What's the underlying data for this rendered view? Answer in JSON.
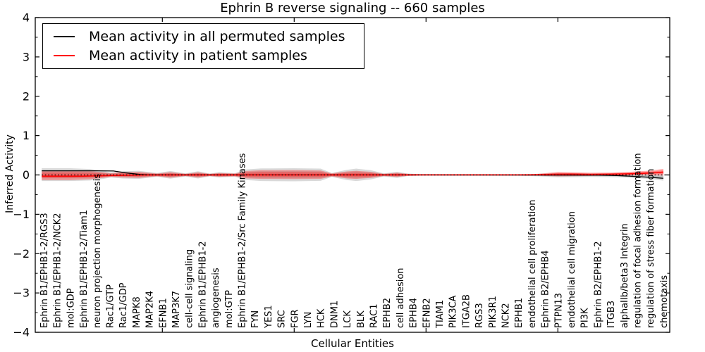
{
  "chart_data": {
    "type": "violin",
    "title": "Ephrin B reverse signaling -- 660 samples",
    "xlabel": "Cellular Entities",
    "ylabel": "Inferred Activity",
    "ylim": [
      -4,
      4
    ],
    "grid": false,
    "legend_position": "upper left",
    "ytick_labels": [
      "4",
      "3",
      "2",
      "1",
      "0",
      "−1",
      "−2",
      "−3",
      "−4"
    ],
    "x_top_tick_positions": [
      10,
      20,
      30,
      40
    ],
    "categories": [
      "Ephrin B1/EPHB1-2/RGS3",
      "Ephrin B1/EPHB1-2/NCK2",
      "mol:GDP",
      "Ephrin B1/EPHB1-2/Tiam1",
      "neuron projection morphogenesis",
      "Rac1/GTP",
      "Rac1/GDP",
      "MAPK8",
      "MAP2K4",
      "EFNB1",
      "MAP3K7",
      "cell-cell signaling",
      "Ephrin B1/EPHB1-2",
      "angiogenesis",
      "mol:GTP",
      "Ephrin B1/EPHB1-2/Src Family Kinases",
      "FYN",
      "YES1",
      "SRC",
      "FGR",
      "LYN",
      "HCK",
      "DNM1",
      "LCK",
      "BLK",
      "RAC1",
      "EPHB2",
      "cell adhesion",
      "EPHB4",
      "EFNB2",
      "TIAM1",
      "PIK3CA",
      "ITGA2B",
      "RGS3",
      "PIK3R1",
      "NCK2",
      "EPHB1",
      "endothelial cell proliferation",
      "Ephrin B2/EPHB4",
      "PTPN13",
      "endothelial cell migration",
      "PI3K",
      "Ephrin B2/EPHB1-2",
      "ITGB3",
      "alphaIIb/beta3 Integrin",
      "regulation of focal adhesion formation",
      "regulation of stress fiber formation",
      "chemotaxis"
    ],
    "legend": [
      {
        "label": "Mean activity in all permuted samples",
        "color": "#000000"
      },
      {
        "label": "Mean activity in patient samples",
        "color": "#ff0000"
      }
    ],
    "zero_line": {
      "style": "dotted",
      "color": "#000000",
      "y": 0
    },
    "series": [
      {
        "name": "Mean activity in all permuted samples",
        "color": "#000000",
        "style": "solid",
        "width": 1.3,
        "points": [
          [
            0.85,
            0.105
          ],
          [
            5,
            0.105
          ],
          [
            6.3,
            0.1
          ],
          [
            7.2,
            0.055
          ],
          [
            8.3,
            0.012
          ],
          [
            9,
            0.004
          ],
          [
            20,
            0.003
          ],
          [
            30,
            0.002
          ],
          [
            43,
            -0.004
          ],
          [
            44.5,
            -0.015
          ],
          [
            46,
            -0.04
          ],
          [
            47,
            -0.06
          ],
          [
            48,
            -0.085
          ]
        ]
      },
      {
        "name": "Mean activity in patient samples",
        "color": "#ff0000",
        "style": "solid",
        "width": 1.6,
        "points": [
          [
            0.85,
            -0.03
          ],
          [
            4,
            -0.03
          ],
          [
            5.5,
            -0.02
          ],
          [
            7,
            -0.01
          ],
          [
            9,
            0
          ],
          [
            38,
            0.003
          ],
          [
            39.5,
            0.015
          ],
          [
            41,
            0.02
          ],
          [
            42.5,
            0.012
          ],
          [
            44,
            0.02
          ],
          [
            45.5,
            0.03
          ],
          [
            46.5,
            0.042
          ],
          [
            47.5,
            0.058
          ],
          [
            48,
            0.072
          ]
        ]
      }
    ],
    "violins": [
      {
        "name": "permuted-distribution",
        "color": "#9a9a9a",
        "profile": [
          [
            0.85,
            0.17,
            -0.155
          ],
          [
            3,
            0.17,
            -0.155
          ],
          [
            4.5,
            0.15,
            -0.14
          ],
          [
            5.5,
            0.1,
            -0.1
          ],
          [
            6.1,
            0.065,
            -0.065
          ],
          [
            7.0,
            0.095,
            -0.09
          ],
          [
            8.2,
            0.105,
            -0.1
          ],
          [
            9.6,
            0.05,
            -0.045
          ],
          [
            10.6,
            0.1,
            -0.095
          ],
          [
            11.75,
            0.04,
            -0.04
          ],
          [
            12.7,
            0.095,
            -0.09
          ],
          [
            13.6,
            0.035,
            -0.035
          ],
          [
            14.3,
            0.07,
            -0.065
          ],
          [
            15.5,
            0.045,
            -0.045
          ],
          [
            16.4,
            0.14,
            -0.13
          ],
          [
            17.5,
            0.165,
            -0.155
          ],
          [
            20,
            0.17,
            -0.16
          ],
          [
            22,
            0.16,
            -0.15
          ],
          [
            22.85,
            0.05,
            -0.05
          ],
          [
            24,
            0.13,
            -0.13
          ],
          [
            24.7,
            0.16,
            -0.155
          ],
          [
            25.8,
            0.12,
            -0.115
          ],
          [
            26.8,
            0.04,
            -0.04
          ],
          [
            27.8,
            0.08,
            -0.075
          ],
          [
            28.6,
            0.035,
            -0.03
          ],
          [
            29.5,
            0.022,
            -0.022
          ],
          [
            33,
            0.02,
            -0.02
          ],
          [
            37,
            0.02,
            -0.02
          ],
          [
            38.5,
            0.028,
            -0.035
          ],
          [
            40,
            0.045,
            -0.06
          ],
          [
            41.5,
            0.04,
            -0.055
          ],
          [
            42.5,
            0.035,
            -0.05
          ],
          [
            44,
            0.03,
            -0.055
          ],
          [
            45.5,
            0.025,
            -0.07
          ],
          [
            47,
            0.015,
            -0.1
          ],
          [
            48,
            0.01,
            -0.145
          ]
        ]
      },
      {
        "name": "patient-distribution",
        "color": "#ff2a2a",
        "profile": [
          [
            0.85,
            0.115,
            -0.13
          ],
          [
            3,
            0.115,
            -0.13
          ],
          [
            4.5,
            0.1,
            -0.11
          ],
          [
            5.5,
            0.07,
            -0.075
          ],
          [
            6.1,
            0.045,
            -0.05
          ],
          [
            7.0,
            0.07,
            -0.065
          ],
          [
            8.2,
            0.075,
            -0.075
          ],
          [
            9.6,
            0.035,
            -0.035
          ],
          [
            10.6,
            0.07,
            -0.07
          ],
          [
            11.75,
            0.03,
            -0.03
          ],
          [
            12.7,
            0.065,
            -0.065
          ],
          [
            13.6,
            0.028,
            -0.028
          ],
          [
            14.3,
            0.05,
            -0.048
          ],
          [
            15.5,
            0.035,
            -0.035
          ],
          [
            16.4,
            0.1,
            -0.09
          ],
          [
            17.5,
            0.12,
            -0.1
          ],
          [
            20,
            0.125,
            -0.105
          ],
          [
            22,
            0.115,
            -0.1
          ],
          [
            22.85,
            0.04,
            -0.04
          ],
          [
            24,
            0.09,
            -0.09
          ],
          [
            24.7,
            0.105,
            -0.1
          ],
          [
            25.8,
            0.08,
            -0.075
          ],
          [
            26.8,
            0.03,
            -0.03
          ],
          [
            27.8,
            0.055,
            -0.05
          ],
          [
            28.6,
            0.028,
            -0.025
          ],
          [
            29.5,
            0.02,
            -0.018
          ],
          [
            33,
            0.018,
            -0.016
          ],
          [
            37,
            0.018,
            -0.016
          ],
          [
            38.5,
            0.03,
            -0.02
          ],
          [
            40,
            0.075,
            -0.035
          ],
          [
            41.5,
            0.065,
            -0.03
          ],
          [
            42.5,
            0.055,
            -0.025
          ],
          [
            44,
            0.06,
            -0.015
          ],
          [
            45.5,
            0.08,
            -0.01
          ],
          [
            47,
            0.11,
            -0.005
          ],
          [
            48,
            0.155,
            -0.015
          ]
        ]
      }
    ]
  }
}
